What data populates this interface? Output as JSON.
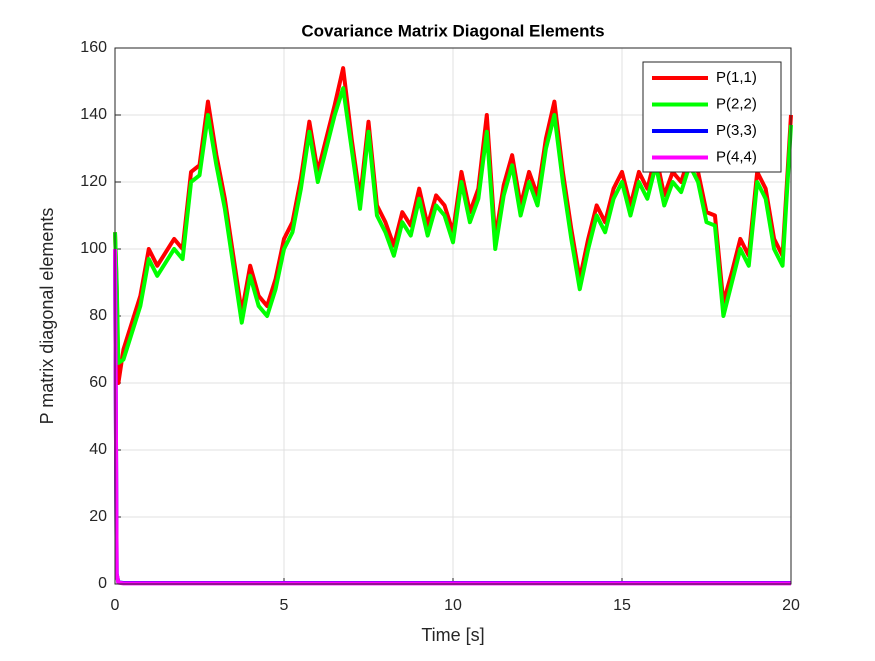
{
  "chart_data": {
    "type": "line",
    "title": "Covariance Matrix Diagonal Elements",
    "x_label": "Time [s]",
    "y_label": "P matrix diagonal elements",
    "x": [
      0,
      0.05,
      0.1,
      0.25,
      0.5,
      0.75,
      1,
      1.25,
      1.5,
      1.75,
      2,
      2.25,
      2.5,
      2.75,
      3,
      3.25,
      3.5,
      3.75,
      4,
      4.25,
      4.5,
      4.75,
      5,
      5.25,
      5.5,
      5.75,
      6,
      6.25,
      6.5,
      6.75,
      7,
      7.25,
      7.5,
      7.75,
      8,
      8.25,
      8.5,
      8.75,
      9,
      9.25,
      9.5,
      9.75,
      10,
      10.25,
      10.5,
      10.75,
      11,
      11.25,
      11.5,
      11.75,
      12,
      12.25,
      12.5,
      12.75,
      13,
      13.25,
      13.5,
      13.75,
      14,
      14.25,
      14.5,
      14.75,
      15,
      15.25,
      15.5,
      15.75,
      16,
      16.25,
      16.5,
      16.75,
      17,
      17.25,
      17.5,
      17.75,
      18,
      18.25,
      18.5,
      18.75,
      19,
      19.25,
      19.5,
      19.75,
      20
    ],
    "series": [
      {
        "name": "P(1,1)",
        "color": "#ff0000",
        "values": [
          105,
          88,
          60,
          70,
          78,
          86,
          100,
          95,
          99,
          103,
          100,
          123,
          125,
          144,
          128,
          115,
          98,
          81,
          95,
          86,
          83,
          91,
          103,
          108,
          121,
          138,
          123,
          133,
          143,
          154,
          133,
          115,
          138,
          113,
          108,
          101,
          111,
          107,
          118,
          107,
          116,
          113,
          105,
          123,
          111,
          118,
          140,
          103,
          119,
          128,
          113,
          123,
          116,
          133,
          144,
          123,
          106,
          91,
          103,
          113,
          108,
          118,
          123,
          113,
          123,
          118,
          128,
          116,
          123,
          120,
          128,
          123,
          111,
          110,
          84,
          93,
          103,
          98,
          123,
          118,
          103,
          98,
          140
        ]
      },
      {
        "name": "P(2,2)",
        "color": "#00ff00",
        "values": [
          105,
          90,
          66,
          67,
          75,
          83,
          97,
          92,
          96,
          100,
          97,
          120,
          122,
          140,
          125,
          112,
          95,
          78,
          92,
          83,
          80,
          88,
          100,
          105,
          118,
          135,
          120,
          130,
          140,
          148,
          130,
          112,
          135,
          110,
          105,
          98,
          108,
          104,
          115,
          104,
          113,
          110,
          102,
          120,
          108,
          115,
          135,
          100,
          116,
          125,
          110,
          120,
          113,
          130,
          140,
          120,
          103,
          88,
          100,
          110,
          105,
          115,
          120,
          110,
          120,
          115,
          125,
          113,
          120,
          117,
          125,
          120,
          108,
          107,
          80,
          90,
          100,
          95,
          120,
          115,
          100,
          95,
          137
        ]
      },
      {
        "name": "P(3,3)",
        "color": "#0000ff",
        "values": [
          100,
          3,
          0.5,
          0.3,
          0.3,
          0.3,
          0.3,
          0.3,
          0.3,
          0.3,
          0.3,
          0.3,
          0.3,
          0.3,
          0.3,
          0.3,
          0.3,
          0.3,
          0.3,
          0.3,
          0.3,
          0.3,
          0.3,
          0.3,
          0.3,
          0.3,
          0.3,
          0.3,
          0.3,
          0.3,
          0.3,
          0.3,
          0.3,
          0.3,
          0.3,
          0.3,
          0.3,
          0.3,
          0.3,
          0.3,
          0.3,
          0.3,
          0.3,
          0.3,
          0.3,
          0.3,
          0.3,
          0.3,
          0.3,
          0.3,
          0.3,
          0.3,
          0.3,
          0.3,
          0.3,
          0.3,
          0.3,
          0.3,
          0.3,
          0.3,
          0.3,
          0.3,
          0.3,
          0.3,
          0.3,
          0.3,
          0.3,
          0.3,
          0.3,
          0.3,
          0.3,
          0.3,
          0.3,
          0.3,
          0.3,
          0.3,
          0.3,
          0.3,
          0.3,
          0.3,
          0.3,
          0.3,
          0.3
        ]
      },
      {
        "name": "P(4,4)",
        "color": "#ff00ff",
        "values": [
          100,
          3,
          0.4,
          0.2,
          0.2,
          0.2,
          0.2,
          0.2,
          0.2,
          0.2,
          0.2,
          0.2,
          0.2,
          0.2,
          0.2,
          0.2,
          0.2,
          0.2,
          0.2,
          0.2,
          0.2,
          0.2,
          0.2,
          0.2,
          0.2,
          0.2,
          0.2,
          0.2,
          0.2,
          0.2,
          0.2,
          0.2,
          0.2,
          0.2,
          0.2,
          0.2,
          0.2,
          0.2,
          0.2,
          0.2,
          0.2,
          0.2,
          0.2,
          0.2,
          0.2,
          0.2,
          0.2,
          0.2,
          0.2,
          0.2,
          0.2,
          0.2,
          0.2,
          0.2,
          0.2,
          0.2,
          0.2,
          0.2,
          0.2,
          0.2,
          0.2,
          0.2,
          0.2,
          0.2,
          0.2,
          0.2,
          0.2,
          0.2,
          0.2,
          0.2,
          0.2,
          0.2,
          0.2,
          0.2,
          0.2,
          0.2,
          0.2,
          0.2,
          0.2,
          0.2,
          0.2,
          0.2,
          0.2
        ]
      }
    ],
    "xlim": [
      0,
      20
    ],
    "xticks": [
      0,
      5,
      10,
      15,
      20
    ],
    "ylim": [
      0,
      160
    ],
    "yticks": [
      0,
      20,
      40,
      60,
      80,
      100,
      120,
      140,
      160
    ],
    "grid": true,
    "legend": "northeast"
  }
}
